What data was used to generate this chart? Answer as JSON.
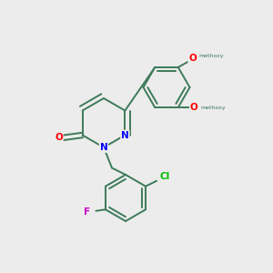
{
  "background_color": "#ececec",
  "bond_color": "#3d7a5a",
  "atom_colors": {
    "O": "#ff0000",
    "N": "#0000ff",
    "Cl": "#00bb00",
    "F": "#cc00cc"
  },
  "figsize": [
    3.0,
    3.0
  ],
  "dpi": 100
}
